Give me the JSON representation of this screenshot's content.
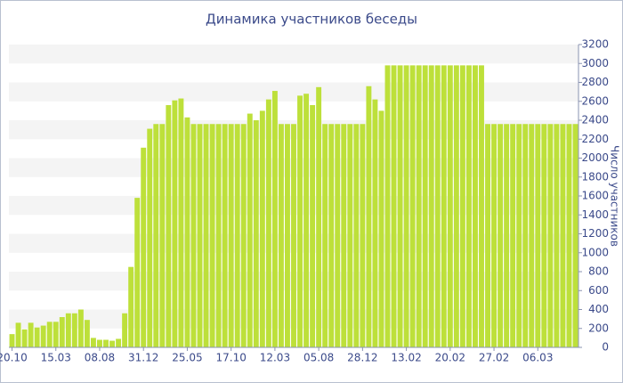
{
  "chart_data": {
    "type": "bar",
    "title": "Динамика участников беседы",
    "y_label": "Число участников",
    "categories": [
      "20.10",
      null,
      null,
      null,
      null,
      null,
      null,
      "15.03",
      null,
      null,
      null,
      null,
      null,
      null,
      "08.08",
      null,
      null,
      null,
      null,
      null,
      null,
      "31.12",
      null,
      null,
      null,
      null,
      null,
      null,
      "25.05",
      null,
      null,
      null,
      null,
      null,
      null,
      "17.10",
      null,
      null,
      null,
      null,
      null,
      null,
      "12.03",
      null,
      null,
      null,
      null,
      null,
      null,
      "05.08",
      null,
      null,
      null,
      null,
      null,
      null,
      "28.12",
      null,
      null,
      null,
      null,
      null,
      null,
      "13.02",
      null,
      null,
      null,
      null,
      null,
      null,
      "20.02",
      null,
      null,
      null,
      null,
      null,
      null,
      "27.02",
      null,
      null,
      null,
      null,
      null,
      null,
      "06.03",
      null,
      null,
      null,
      null,
      null,
      null
    ],
    "values": [
      140,
      260,
      190,
      260,
      210,
      230,
      270,
      270,
      320,
      360,
      360,
      400,
      290,
      100,
      80,
      80,
      70,
      90,
      360,
      850,
      1580,
      2110,
      2310,
      2360,
      2360,
      2560,
      2610,
      2630,
      2430,
      2360,
      2360,
      2360,
      2360,
      2360,
      2360,
      2360,
      2360,
      2360,
      2470,
      2400,
      2500,
      2620,
      2710,
      2360,
      2360,
      2360,
      2660,
      2680,
      2560,
      2750,
      2360,
      2360,
      2360,
      2360,
      2360,
      2360,
      2360,
      2760,
      2620,
      2500,
      2980,
      2980,
      2980,
      2980,
      2980,
      2980,
      2980,
      2980,
      2980,
      2980,
      2980,
      2980,
      2980,
      2980,
      2980,
      2980,
      2360,
      2360,
      2360,
      2360,
      2360,
      2360,
      2360,
      2360,
      2360,
      2360,
      2360,
      2360,
      2360,
      2360,
      2360
    ],
    "color": "#bde03a",
    "ylim": [
      0,
      3200
    ],
    "yticks": [
      0,
      200,
      400,
      600,
      800,
      1000,
      1200,
      1400,
      1600,
      1800,
      2000,
      2200,
      2400,
      2600,
      2800,
      3000,
      3200
    ],
    "grid": true
  }
}
